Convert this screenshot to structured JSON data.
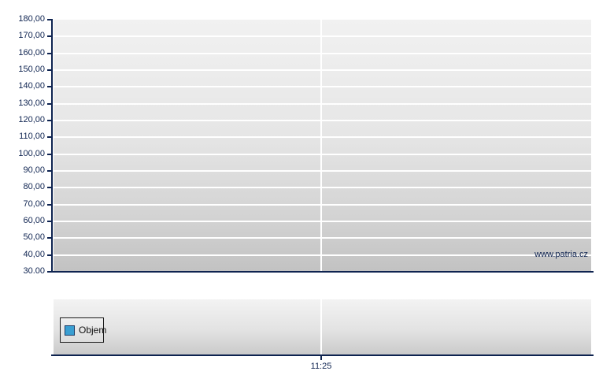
{
  "watermark": "www.patria.cz",
  "price_chart": {
    "y_axis_labels": [
      "180,00",
      "170,00",
      "160,00",
      "150,00",
      "140,00",
      "130,00",
      "120,00",
      "110,00",
      "100,00",
      "90,00",
      "80,00",
      "70,00",
      "60,00",
      "50,00",
      "40,00",
      "30.00"
    ]
  },
  "volume_panel": {
    "legend": {
      "label": "Objem",
      "marker_color": "#3a9fd2",
      "marker_border_color": "#1c3c66"
    }
  },
  "x_axis": {
    "labels": [
      "11:25"
    ]
  },
  "colors": {
    "axis": "#0e2350",
    "gridline": "#ffffff",
    "plot_background_top": "#f1f1f1",
    "plot_background_bottom": "#c2c2c2",
    "page_background": "#ffffff"
  },
  "chart_data": [
    {
      "type": "line",
      "title": "",
      "x": [],
      "series": [],
      "ylim": [
        30,
        180
      ],
      "ytick_step": 10,
      "ytick_labels": [
        "180,00",
        "170,00",
        "160,00",
        "150,00",
        "140,00",
        "130,00",
        "120,00",
        "110,00",
        "100,00",
        "90,00",
        "80,00",
        "70,00",
        "60,00",
        "50,00",
        "40,00",
        "30.00"
      ],
      "xtick_labels": [
        "11:25"
      ],
      "grid": true,
      "legend_position": "none",
      "annotations": [
        "www.patria.cz"
      ]
    },
    {
      "type": "bar",
      "title": "",
      "x": [],
      "values": [],
      "xtick_labels": [
        "11:25"
      ],
      "legend_entries": [
        "Objem"
      ],
      "legend_position": "left",
      "grid": true
    }
  ]
}
